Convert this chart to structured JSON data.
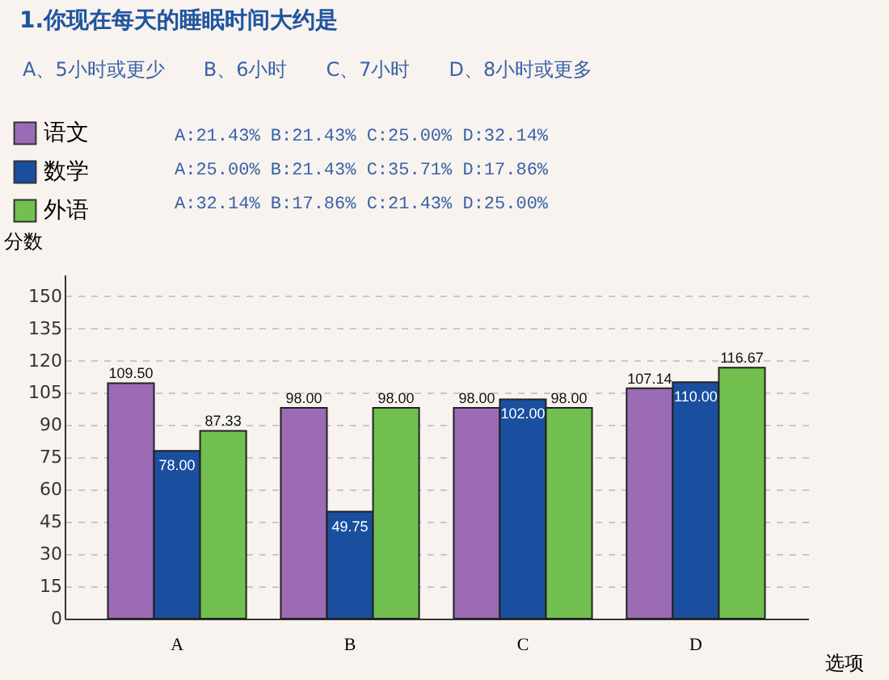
{
  "chart_data": {
    "type": "bar",
    "title": "1.你现在每天的睡眠时间大约是",
    "subtitle": "A、5小时或更少　　B、6小时　　C、7小时　　D、8小时或更多",
    "categories": [
      "A",
      "B",
      "C",
      "D"
    ],
    "series": [
      {
        "name": "语文",
        "color": "#9b6bb5",
        "values": [
          109.5,
          98.0,
          98.0,
          107.14
        ],
        "value_labels": [
          "109.50",
          "98.00",
          "98.00",
          "107.14"
        ]
      },
      {
        "name": "数学",
        "color": "#1a4fa0",
        "values": [
          78.0,
          49.75,
          102.0,
          110.0
        ],
        "value_labels": [
          "78.00",
          "49.75",
          "102.00",
          "110.00"
        ]
      },
      {
        "name": "外语",
        "color": "#72c050",
        "values": [
          87.33,
          98.0,
          98.0,
          116.67
        ],
        "value_labels": [
          "87.33",
          "98.00",
          "98.00",
          "116.67"
        ]
      }
    ],
    "annotations": [
      "A:21.43%  B:21.43%  C:25.00%  D:32.14%",
      "A:25.00%  B:21.43%  C:35.71%  D:17.86%",
      "A:32.14%  B:17.86%  C:21.43%  D:25.00%"
    ],
    "xlabel": "选项",
    "ylabel": "分数",
    "ylim": [
      0,
      160
    ],
    "yticks": [
      0,
      15,
      30,
      45,
      60,
      75,
      90,
      105,
      120,
      135,
      150
    ],
    "grid": "y",
    "legend": "top left"
  }
}
